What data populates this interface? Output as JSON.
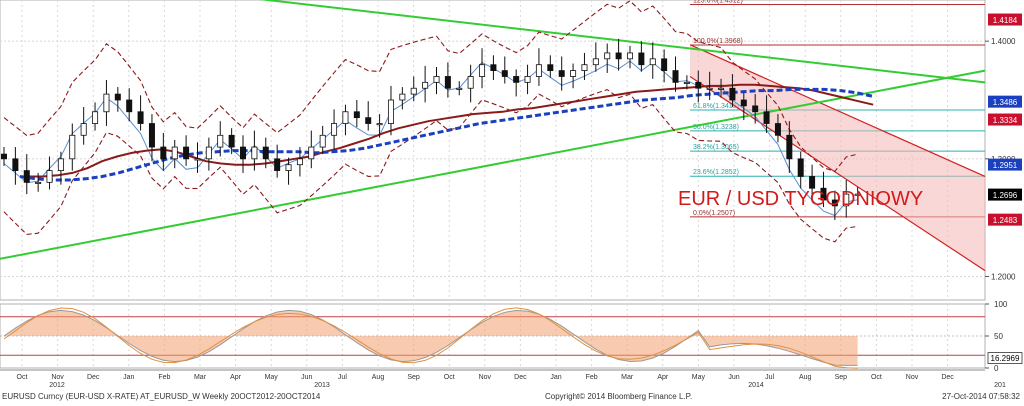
{
  "footer": {
    "left": "EURUSD Curncy (EUR-USD X-RATE) AT_EURUSD_W  Weekly 20OCT2012-20OCT2014",
    "center": "Copyright© 2014 Bloomberg Finance L.P.",
    "right": "27-Oct-2014 07:58:32"
  },
  "chart_data": {
    "type": "line",
    "title": "EUR / USD TYGODNIOWY",
    "price_axis": {
      "ticks": [
        "1.4000",
        "1.3000",
        "1.2000"
      ],
      "ylim": [
        1.18,
        1.435
      ]
    },
    "x_axis": {
      "months": [
        "Oct",
        "Nov",
        "Dec",
        "Jan",
        "Feb",
        "Mar",
        "Apr",
        "May",
        "Jun",
        "Jul",
        "Aug",
        "Sep",
        "Oct",
        "Nov",
        "Dec",
        "Jan",
        "Feb",
        "Mar",
        "Apr",
        "May",
        "Jun",
        "Jul",
        "Aug",
        "Sep",
        "Oct",
        "Nov",
        "Dec"
      ],
      "years": [
        "2012",
        "2013",
        "2014",
        "201"
      ]
    },
    "price_tags": [
      {
        "label": "1.4184",
        "value": 1.4184,
        "color": "#c8102e"
      },
      {
        "label": "1.3486",
        "value": 1.3486,
        "color": "#1a3fbf"
      },
      {
        "label": "1.3334",
        "value": 1.3334,
        "color": "#c8102e"
      },
      {
        "label": "1.2951",
        "value": 1.2951,
        "color": "#1a3fbf"
      },
      {
        "label": "1.2696",
        "value": 1.2696,
        "color": "#000000"
      },
      {
        "label": "1.2483",
        "value": 1.2483,
        "color": "#c8102e"
      }
    ],
    "fibonacci": [
      {
        "label": "123.6%(1.4312)",
        "value": 1.4312
      },
      {
        "label": "100.0%(1.3968)",
        "value": 1.3968
      },
      {
        "label": "61.8%(1.3415)",
        "value": 1.3415
      },
      {
        "label": "50.0%(1.3238)",
        "value": 1.3238
      },
      {
        "label": "38.2%(1.3065)",
        "value": 1.3065
      },
      {
        "label": "23.6%(1.2852)",
        "value": 1.2852
      },
      {
        "label": "0.0%(1.2507)",
        "value": 1.2507
      }
    ],
    "series": [
      {
        "values": [
          1.3,
          1.29,
          1.28,
          1.28,
          1.29,
          1.3,
          1.32,
          1.33,
          1.34,
          1.355,
          1.35,
          1.34,
          1.33,
          1.31,
          1.3,
          1.31,
          1.3,
          1.3,
          1.31,
          1.32,
          1.31,
          1.3,
          1.31,
          1.3,
          1.29,
          1.295,
          1.3,
          1.31,
          1.32,
          1.33,
          1.34,
          1.335,
          1.33,
          1.33,
          1.35,
          1.355,
          1.36,
          1.365,
          1.37,
          1.36,
          1.36,
          1.37,
          1.38,
          1.375,
          1.37,
          1.365,
          1.37,
          1.38,
          1.375,
          1.37,
          1.375,
          1.38,
          1.385,
          1.39,
          1.385,
          1.39,
          1.38,
          1.385,
          1.375,
          1.365,
          1.365,
          1.36,
          1.36,
          1.36,
          1.35,
          1.345,
          1.34,
          1.33,
          1.32,
          1.3,
          1.285,
          1.275,
          1.265,
          1.26,
          1.27,
          1.27
        ]
      },
      {
        "values": [
          1.285,
          1.285,
          1.286,
          1.288,
          1.292,
          1.298,
          1.302,
          1.305,
          1.307,
          1.308,
          1.306,
          1.302,
          1.298,
          1.296,
          1.295,
          1.295,
          1.296,
          1.298,
          1.3,
          1.302,
          1.306,
          1.309,
          1.313,
          1.317,
          1.322,
          1.326,
          1.329,
          1.332,
          1.334,
          1.336,
          1.338,
          1.339,
          1.34,
          1.342,
          1.343,
          1.345,
          1.347,
          1.349,
          1.351,
          1.353,
          1.355,
          1.357,
          1.358,
          1.359,
          1.36,
          1.361,
          1.362,
          1.362,
          1.363,
          1.363,
          1.362,
          1.361,
          1.36,
          1.358,
          1.355,
          1.352,
          1.349,
          1.346
        ]
      },
      {
        "values": [
          1.285,
          1.283,
          1.282,
          1.282,
          1.283,
          1.285,
          1.288,
          1.292,
          1.296,
          1.3,
          1.303,
          1.305,
          1.306,
          1.307,
          1.307,
          1.306,
          1.306,
          1.306,
          1.305,
          1.306,
          1.307,
          1.309,
          1.312,
          1.315,
          1.318,
          1.321,
          1.324,
          1.327,
          1.33,
          1.332,
          1.334,
          1.336,
          1.338,
          1.34,
          1.342,
          1.344,
          1.346,
          1.348,
          1.35,
          1.351,
          1.352,
          1.354,
          1.355,
          1.356,
          1.357,
          1.358,
          1.358,
          1.359,
          1.359,
          1.359,
          1.358,
          1.356,
          1.353
        ]
      }
    ],
    "oscillator": {
      "ticks": [
        "100",
        "50",
        "0"
      ],
      "ylim": [
        0,
        100
      ],
      "levels": [
        80,
        20
      ],
      "current_label": "16.2969",
      "current_value": 16.2969
    },
    "colors": {
      "trend_lines": "#33cc33",
      "channel": "#d22020",
      "moving_average_1": "#1a3fbf",
      "moving_average_2": "#8b1a1a",
      "bollinger": "#8b1a1a",
      "grid": "#d8d8d8"
    }
  }
}
